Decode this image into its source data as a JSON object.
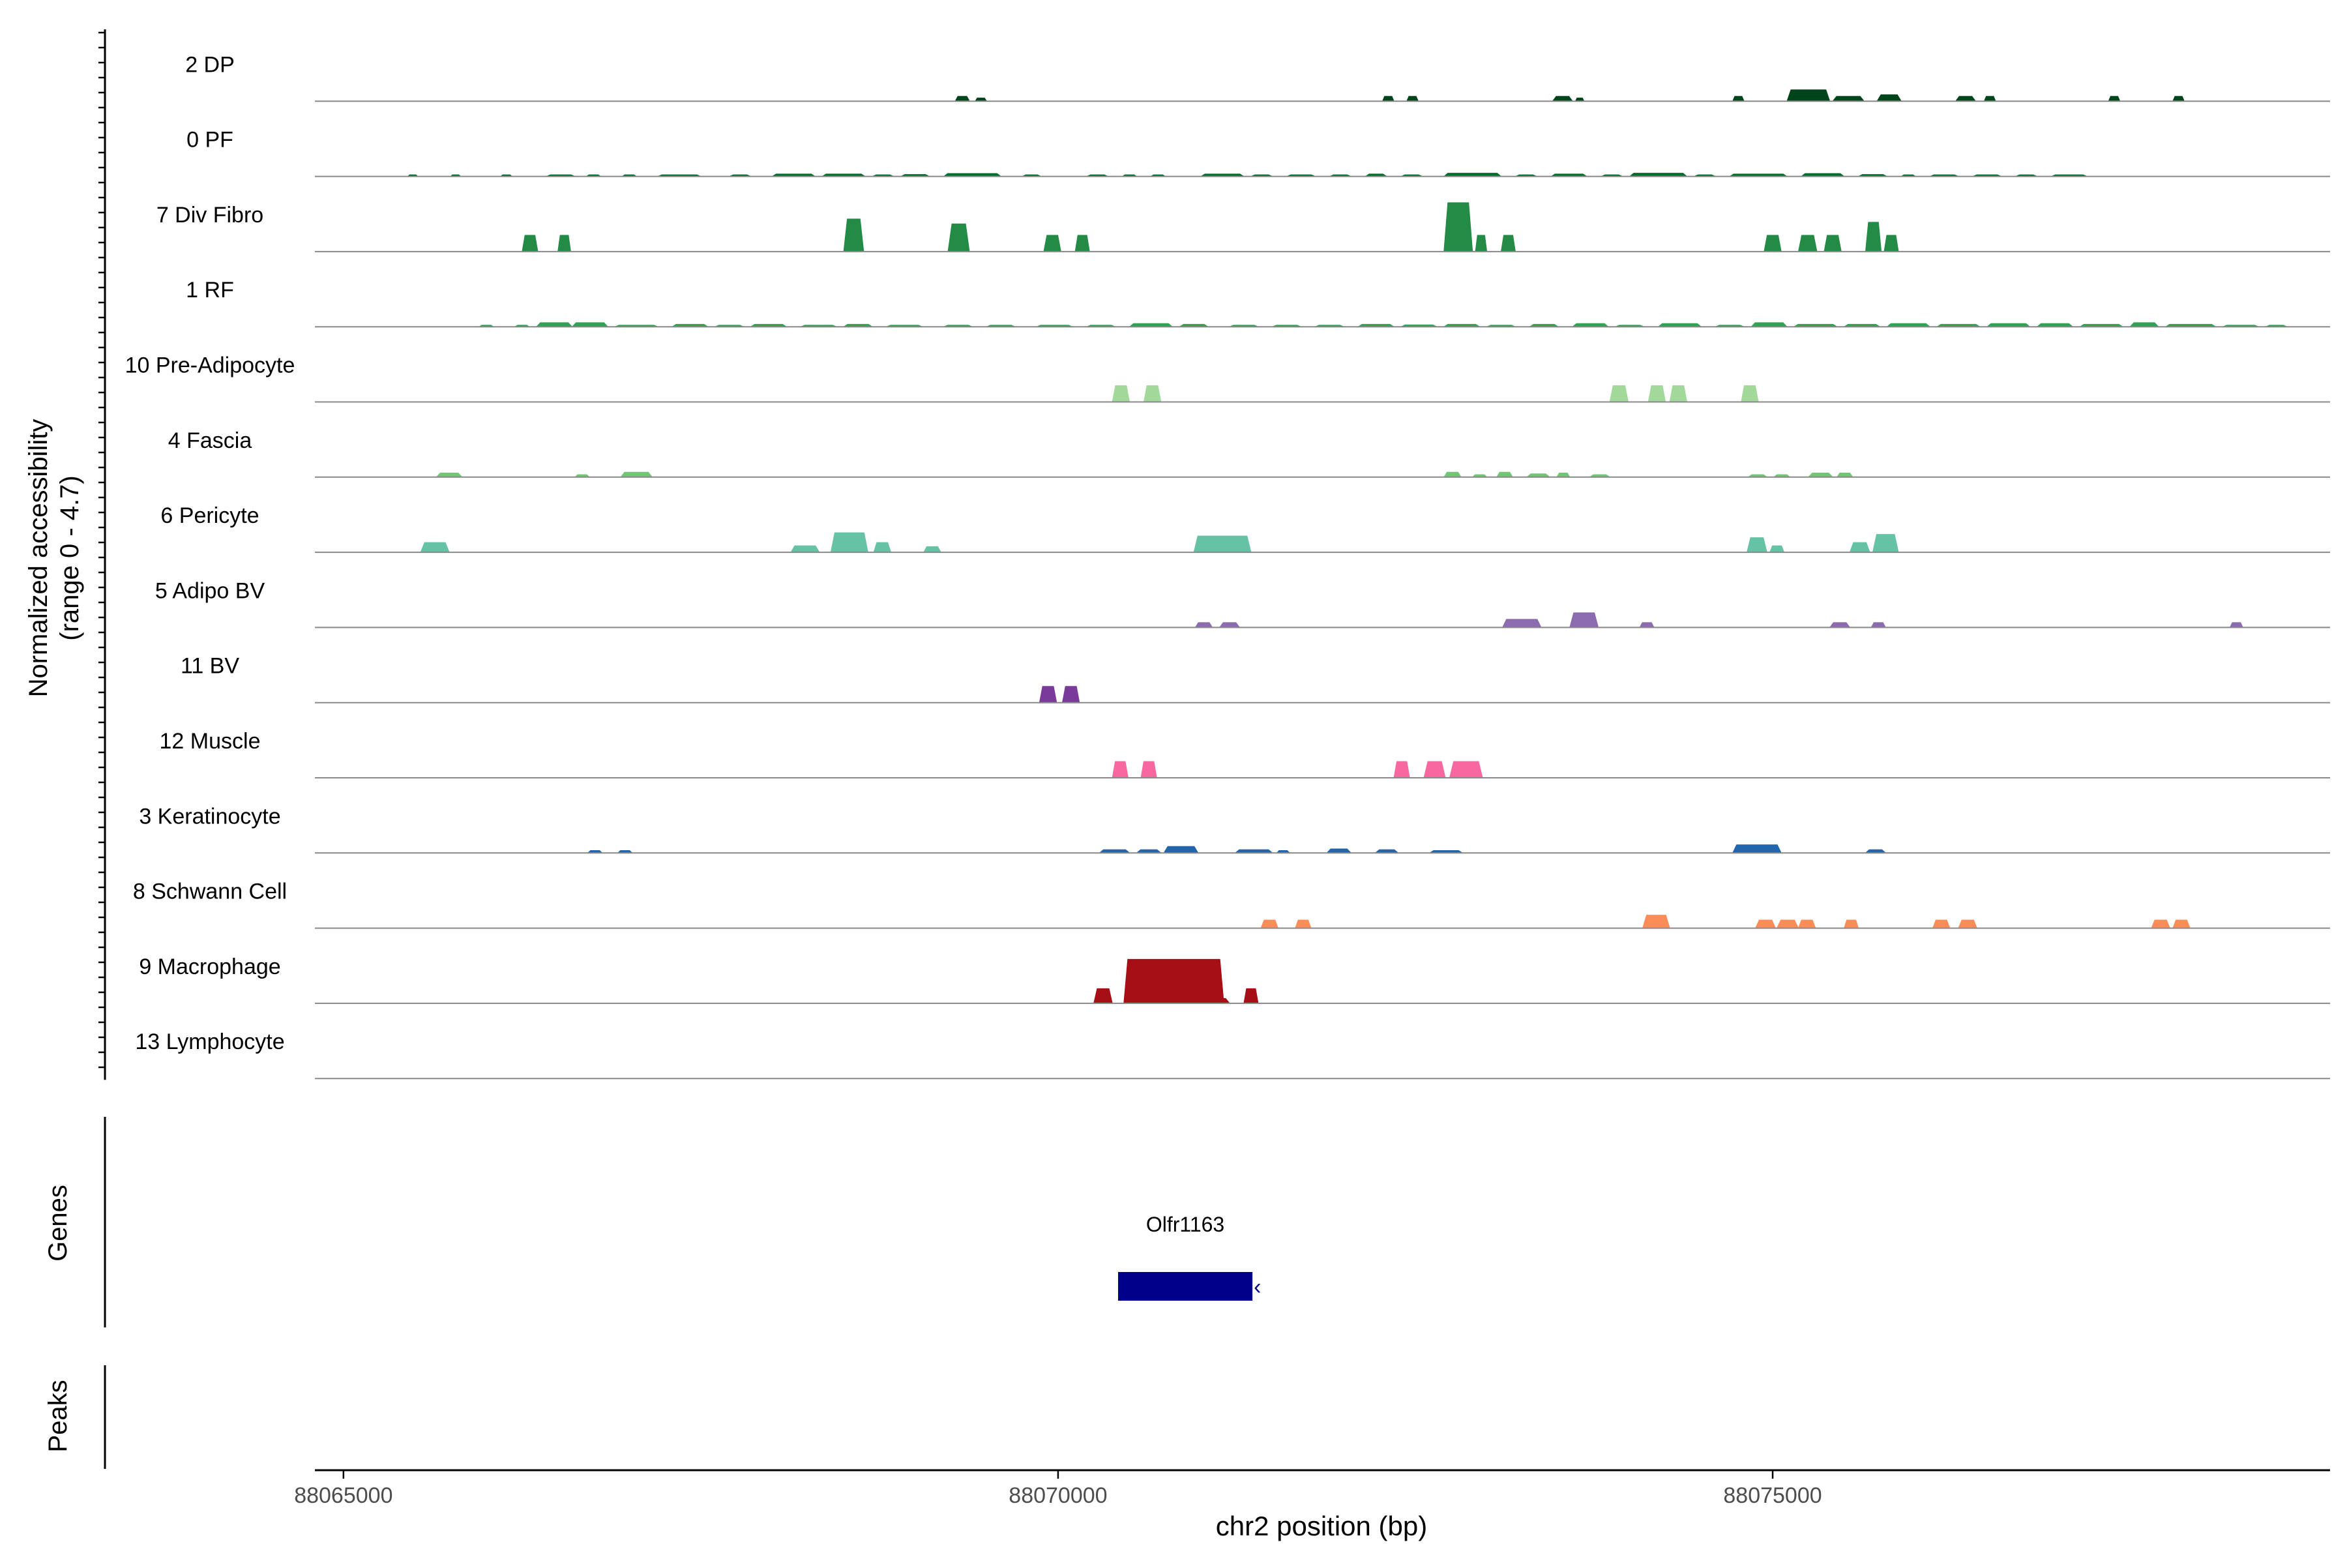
{
  "chart_data": {
    "type": "area",
    "title": "",
    "ylabel_main": "Normalized accessibility",
    "ylabel_sub": "(range 0 - 4.7)",
    "xlabel": "chr2 position (bp)",
    "xlim": [
      88064800,
      88078900
    ],
    "ylim": [
      0,
      4.7
    ],
    "xticks": [
      88065000,
      88070000,
      88075000
    ],
    "xtick_labels": [
      "88065000",
      "88070000",
      "88075000"
    ],
    "panels": {
      "genes_label": "Genes",
      "peaks_label": "Peaks"
    },
    "genes": [
      {
        "name": "Olfr1163",
        "start": 88070420,
        "end": 88071360,
        "strand": "-",
        "color": "#00008B"
      }
    ],
    "tracks": [
      {
        "name": "2 DP",
        "color": "#00441B",
        "peaks": [
          [
            88069280,
            88069380,
            0.3
          ],
          [
            88069420,
            88069500,
            0.2
          ],
          [
            88072270,
            88072350,
            0.3
          ],
          [
            88072440,
            88072520,
            0.3
          ],
          [
            88073460,
            88073600,
            0.3
          ],
          [
            88073620,
            88073680,
            0.2
          ],
          [
            88074720,
            88074800,
            0.3
          ],
          [
            88075100,
            88075400,
            0.7
          ],
          [
            88075420,
            88075640,
            0.3
          ],
          [
            88075730,
            88075900,
            0.4
          ],
          [
            88076280,
            88076420,
            0.3
          ],
          [
            88076480,
            88076560,
            0.3
          ],
          [
            88077350,
            88077430,
            0.3
          ],
          [
            88077800,
            88077880,
            0.3
          ]
        ]
      },
      {
        "name": "0 PF",
        "color": "#006D2C",
        "peaks": [
          [
            88065450,
            88065520,
            0.1
          ],
          [
            88065750,
            88065820,
            0.1
          ],
          [
            88066100,
            88066180,
            0.1
          ],
          [
            88066420,
            88066620,
            0.1
          ],
          [
            88066700,
            88066800,
            0.1
          ],
          [
            88066950,
            88067050,
            0.1
          ],
          [
            88067200,
            88067500,
            0.1
          ],
          [
            88067700,
            88067850,
            0.1
          ],
          [
            88068000,
            88068300,
            0.15
          ],
          [
            88068350,
            88068650,
            0.15
          ],
          [
            88068700,
            88068850,
            0.1
          ],
          [
            88068900,
            88069100,
            0.12
          ],
          [
            88069200,
            88069600,
            0.18
          ],
          [
            88069750,
            88069880,
            0.1
          ],
          [
            88070200,
            88070350,
            0.1
          ],
          [
            88070450,
            88070550,
            0.1
          ],
          [
            88070650,
            88070750,
            0.1
          ],
          [
            88071000,
            88071300,
            0.15
          ],
          [
            88071350,
            88071500,
            0.1
          ],
          [
            88071600,
            88071800,
            0.1
          ],
          [
            88071900,
            88072050,
            0.1
          ],
          [
            88072150,
            88072300,
            0.15
          ],
          [
            88072400,
            88072550,
            0.1
          ],
          [
            88072700,
            88073100,
            0.2
          ],
          [
            88073200,
            88073350,
            0.1
          ],
          [
            88073450,
            88073700,
            0.15
          ],
          [
            88073800,
            88073950,
            0.1
          ],
          [
            88074000,
            88074400,
            0.2
          ],
          [
            88074450,
            88074600,
            0.1
          ],
          [
            88074700,
            88075100,
            0.15
          ],
          [
            88075200,
            88075500,
            0.18
          ],
          [
            88075600,
            88075800,
            0.12
          ],
          [
            88075900,
            88076000,
            0.1
          ],
          [
            88076100,
            88076300,
            0.1
          ],
          [
            88076400,
            88076600,
            0.1
          ],
          [
            88076700,
            88076850,
            0.1
          ],
          [
            88076950,
            88077200,
            0.1
          ]
        ]
      },
      {
        "name": "7 Div Fibro",
        "color": "#238B45",
        "peaks": [
          [
            88066250,
            88066360,
            1.0
          ],
          [
            88066500,
            88066590,
            1.0
          ],
          [
            88068500,
            88068640,
            2.0
          ],
          [
            88069230,
            88069380,
            1.7
          ],
          [
            88069900,
            88070020,
            1.0
          ],
          [
            88070120,
            88070220,
            1.0
          ],
          [
            88072700,
            88072900,
            3.0
          ],
          [
            88072920,
            88073000,
            1.0
          ],
          [
            88073100,
            88073200,
            1.0
          ],
          [
            88074940,
            88075060,
            1.0
          ],
          [
            88075180,
            88075310,
            1.0
          ],
          [
            88075360,
            88075480,
            1.0
          ],
          [
            88075650,
            88075760,
            1.8
          ],
          [
            88075780,
            88075880,
            1.0
          ]
        ]
      },
      {
        "name": "1 RF",
        "color": "#31A354",
        "peaks": [
          [
            88065950,
            88066050,
            0.1
          ],
          [
            88066200,
            88066300,
            0.1
          ],
          [
            88066350,
            88066600,
            0.25
          ],
          [
            88066600,
            88066850,
            0.25
          ],
          [
            88066900,
            88067200,
            0.1
          ],
          [
            88067300,
            88067550,
            0.15
          ],
          [
            88067600,
            88067800,
            0.1
          ],
          [
            88067850,
            88068100,
            0.15
          ],
          [
            88068200,
            88068450,
            0.1
          ],
          [
            88068500,
            88068700,
            0.15
          ],
          [
            88068800,
            88069050,
            0.1
          ],
          [
            88069200,
            88069400,
            0.1
          ],
          [
            88069500,
            88069700,
            0.1
          ],
          [
            88069850,
            88070100,
            0.1
          ],
          [
            88070200,
            88070400,
            0.1
          ],
          [
            88070500,
            88070800,
            0.2
          ],
          [
            88070850,
            88071050,
            0.15
          ],
          [
            88071200,
            88071400,
            0.1
          ],
          [
            88071500,
            88071700,
            0.1
          ],
          [
            88071800,
            88072000,
            0.1
          ],
          [
            88072100,
            88072350,
            0.15
          ],
          [
            88072400,
            88072650,
            0.12
          ],
          [
            88072700,
            88072950,
            0.15
          ],
          [
            88073000,
            88073200,
            0.1
          ],
          [
            88073300,
            88073500,
            0.15
          ],
          [
            88073600,
            88073850,
            0.2
          ],
          [
            88073900,
            88074100,
            0.1
          ],
          [
            88074200,
            88074500,
            0.2
          ],
          [
            88074600,
            88074800,
            0.1
          ],
          [
            88074850,
            88075100,
            0.25
          ],
          [
            88075150,
            88075450,
            0.15
          ],
          [
            88075500,
            88075750,
            0.15
          ],
          [
            88075800,
            88076100,
            0.2
          ],
          [
            88076150,
            88076450,
            0.15
          ],
          [
            88076500,
            88076800,
            0.2
          ],
          [
            88076850,
            88077100,
            0.2
          ],
          [
            88077150,
            88077450,
            0.15
          ],
          [
            88077500,
            88077700,
            0.25
          ],
          [
            88077750,
            88078100,
            0.15
          ],
          [
            88078150,
            88078400,
            0.1
          ],
          [
            88078450,
            88078600,
            0.1
          ]
        ]
      },
      {
        "name": "10 Pre-Adipocyte",
        "color": "#A1D99B",
        "peaks": [
          [
            88070380,
            88070500,
            1.0
          ],
          [
            88070600,
            88070720,
            1.0
          ],
          [
            88073860,
            88073990,
            1.0
          ],
          [
            88074130,
            88074250,
            1.0
          ],
          [
            88074280,
            88074400,
            1.0
          ],
          [
            88074780,
            88074900,
            1.0
          ]
        ]
      },
      {
        "name": "4 Fascia",
        "color": "#74C476",
        "peaks": [
          [
            88065650,
            88065830,
            0.25
          ],
          [
            88066620,
            88066720,
            0.15
          ],
          [
            88066940,
            88067160,
            0.3
          ],
          [
            88072700,
            88072820,
            0.3
          ],
          [
            88072900,
            88073000,
            0.15
          ],
          [
            88073070,
            88073180,
            0.3
          ],
          [
            88073280,
            88073440,
            0.2
          ],
          [
            88073490,
            88073580,
            0.25
          ],
          [
            88073720,
            88073860,
            0.15
          ],
          [
            88074830,
            88074960,
            0.15
          ],
          [
            88075010,
            88075120,
            0.15
          ],
          [
            88075250,
            88075420,
            0.25
          ],
          [
            88075450,
            88075560,
            0.25
          ]
        ]
      },
      {
        "name": "6 Pericyte",
        "color": "#66C2A4",
        "peaks": [
          [
            88065540,
            88065740,
            0.6
          ],
          [
            88068130,
            88068330,
            0.4
          ],
          [
            88068410,
            88068670,
            1.2
          ],
          [
            88068710,
            88068830,
            0.6
          ],
          [
            88069060,
            88069180,
            0.35
          ],
          [
            88070950,
            88071350,
            1.0
          ],
          [
            88074820,
            88074960,
            0.9
          ],
          [
            88074980,
            88075080,
            0.4
          ],
          [
            88075540,
            88075680,
            0.6
          ],
          [
            88075700,
            88075880,
            1.1
          ]
        ]
      },
      {
        "name": "5 Adipo BV",
        "color": "#8C6BB1",
        "peaks": [
          [
            88070960,
            88071080,
            0.3
          ],
          [
            88071130,
            88071270,
            0.3
          ],
          [
            88073110,
            88073380,
            0.5
          ],
          [
            88073580,
            88073780,
            0.9
          ],
          [
            88074070,
            88074170,
            0.3
          ],
          [
            88075400,
            88075540,
            0.3
          ],
          [
            88075690,
            88075790,
            0.3
          ],
          [
            88078200,
            88078290,
            0.3
          ]
        ]
      },
      {
        "name": "11 BV",
        "color": "#7A3A9A",
        "peaks": [
          [
            88069870,
            88069990,
            1.0
          ],
          [
            88070030,
            88070150,
            1.0
          ]
        ]
      },
      {
        "name": "12 Muscle",
        "color": "#F768A1",
        "peaks": [
          [
            88070380,
            88070490,
            1.0
          ],
          [
            88070580,
            88070690,
            1.0
          ],
          [
            88072350,
            88072460,
            1.0
          ],
          [
            88072560,
            88072710,
            1.0
          ],
          [
            88072740,
            88072970,
            1.0
          ]
        ]
      },
      {
        "name": "3 Keratinocyte",
        "color": "#2166AC",
        "peaks": [
          [
            88066710,
            88066810,
            0.15
          ],
          [
            88066920,
            88067020,
            0.15
          ],
          [
            88070290,
            88070500,
            0.2
          ],
          [
            88070550,
            88070720,
            0.2
          ],
          [
            88070740,
            88070980,
            0.4
          ],
          [
            88071240,
            88071500,
            0.2
          ],
          [
            88071530,
            88071620,
            0.15
          ],
          [
            88071880,
            88072050,
            0.25
          ],
          [
            88072220,
            88072380,
            0.2
          ],
          [
            88072600,
            88072830,
            0.15
          ],
          [
            88074720,
            88075060,
            0.5
          ],
          [
            88075650,
            88075790,
            0.2
          ]
        ]
      },
      {
        "name": "8 Schwann Cell",
        "color": "#FC8D59",
        "peaks": [
          [
            88071420,
            88071540,
            0.5
          ],
          [
            88071660,
            88071770,
            0.5
          ],
          [
            88074090,
            88074280,
            0.8
          ],
          [
            88074880,
            88075020,
            0.5
          ],
          [
            88075030,
            88075180,
            0.5
          ],
          [
            88075180,
            88075300,
            0.5
          ],
          [
            88075500,
            88075600,
            0.5
          ],
          [
            88076120,
            88076240,
            0.5
          ],
          [
            88076300,
            88076430,
            0.5
          ],
          [
            88077650,
            88077780,
            0.5
          ],
          [
            88077800,
            88077920,
            0.5
          ]
        ]
      },
      {
        "name": "9 Macrophage",
        "color": "#A50F15",
        "peaks": [
          [
            88070250,
            88070380,
            0.9
          ],
          [
            88070460,
            88071160,
            2.7
          ],
          [
            88071020,
            88071200,
            0.3
          ],
          [
            88071300,
            88071400,
            0.9
          ]
        ]
      },
      {
        "name": "13 Lymphocyte",
        "color": "#555555",
        "peaks": []
      }
    ]
  }
}
